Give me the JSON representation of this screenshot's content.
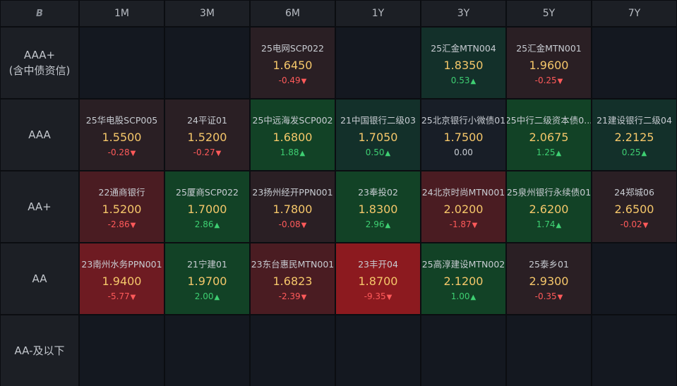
{
  "corner": {
    "logo_text": "B",
    "logo_icon": "logo-icon"
  },
  "columns": [
    "1M",
    "3M",
    "6M",
    "1Y",
    "3Y",
    "5Y",
    "7Y"
  ],
  "rows": [
    {
      "label_lines": [
        "AAA+",
        "(含中债资信)"
      ],
      "cells": [
        null,
        null,
        {
          "name": "25电网SCP022",
          "yield": "1.6450",
          "change": "-0.49",
          "dir": "down",
          "tint": "t-dn1"
        },
        null,
        {
          "name": "25汇金MTN004",
          "yield": "1.8350",
          "change": "0.53",
          "dir": "up",
          "tint": "t-up1"
        },
        {
          "name": "25汇金MTN001",
          "yield": "1.9600",
          "change": "-0.25",
          "dir": "down",
          "tint": "t-dn1"
        },
        null
      ]
    },
    {
      "label_lines": [
        "AAA"
      ],
      "cells": [
        {
          "name": "25华电股SCP005",
          "yield": "1.5500",
          "change": "-0.28",
          "dir": "down",
          "tint": "t-dn1"
        },
        {
          "name": "24平证01",
          "yield": "1.5200",
          "change": "-0.27",
          "dir": "down",
          "tint": "t-dn1"
        },
        {
          "name": "25中远海发SCP002",
          "yield": "1.6800",
          "change": "1.88",
          "dir": "up",
          "tint": "t-up2"
        },
        {
          "name": "21中国银行二级03",
          "yield": "1.7050",
          "change": "0.50",
          "dir": "up",
          "tint": "t-up1"
        },
        {
          "name": "25北京银行小微债01",
          "yield": "1.7500",
          "change": "0.00",
          "dir": "flat",
          "tint": "t-flat"
        },
        {
          "name": "25中行二级资本债0...",
          "yield": "2.0675",
          "change": "1.25",
          "dir": "up",
          "tint": "t-up2"
        },
        {
          "name": "21建设银行二级04",
          "yield": "2.2125",
          "change": "0.25",
          "dir": "up",
          "tint": "t-up1"
        }
      ]
    },
    {
      "label_lines": [
        "AA+"
      ],
      "cells": [
        {
          "name": "22通商银行",
          "yield": "1.5200",
          "change": "-2.86",
          "dir": "down",
          "tint": "t-dn2"
        },
        {
          "name": "25厦商SCP022",
          "yield": "1.7000",
          "change": "2.86",
          "dir": "up",
          "tint": "t-up2"
        },
        {
          "name": "23扬州经开PPN001",
          "yield": "1.7800",
          "change": "-0.08",
          "dir": "down",
          "tint": "t-dn1"
        },
        {
          "name": "23奉投02",
          "yield": "1.8300",
          "change": "2.96",
          "dir": "up",
          "tint": "t-up2"
        },
        {
          "name": "24北京时尚MTN001",
          "yield": "2.0200",
          "change": "-1.87",
          "dir": "down",
          "tint": "t-dn2"
        },
        {
          "name": "25泉州银行永续债01",
          "yield": "2.6200",
          "change": "1.74",
          "dir": "up",
          "tint": "t-up2"
        },
        {
          "name": "24郑城06",
          "yield": "2.6500",
          "change": "-0.02",
          "dir": "down",
          "tint": "t-dn1"
        }
      ]
    },
    {
      "label_lines": [
        "AA"
      ],
      "cells": [
        {
          "name": "23南州水务PPN001",
          "yield": "1.9400",
          "change": "-5.77",
          "dir": "down",
          "tint": "t-dn3"
        },
        {
          "name": "21宁建01",
          "yield": "1.9700",
          "change": "2.00",
          "dir": "up",
          "tint": "t-up2"
        },
        {
          "name": "23东台惠民MTN001",
          "yield": "1.6823",
          "change": "-2.39",
          "dir": "down",
          "tint": "t-dn2"
        },
        {
          "name": "23丰开04",
          "yield": "1.8700",
          "change": "-9.35",
          "dir": "down",
          "tint": "t-dn4"
        },
        {
          "name": "25高淳建设MTN002",
          "yield": "2.1200",
          "change": "1.00",
          "dir": "up",
          "tint": "t-up2"
        },
        {
          "name": "25泰乡01",
          "yield": "2.9300",
          "change": "-0.35",
          "dir": "down",
          "tint": "t-dn1"
        },
        null
      ]
    },
    {
      "label_lines": [
        "AA-及以下"
      ],
      "cells": [
        null,
        null,
        null,
        null,
        null,
        null,
        null
      ]
    }
  ]
}
